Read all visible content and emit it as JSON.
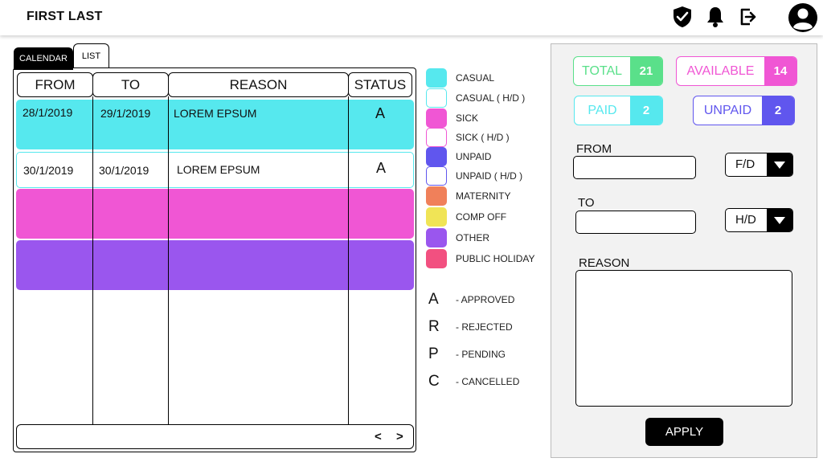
{
  "header": {
    "user_name": "FIRST LAST"
  },
  "icons": [
    "shield-check-icon",
    "bell-icon",
    "logout-icon",
    "avatar-icon"
  ],
  "tabs": [
    {
      "label": "CALENDAR"
    },
    {
      "label": "LIST"
    }
  ],
  "table": {
    "columns": [
      "FROM",
      "TO",
      "REASON",
      "STATUS"
    ],
    "rows": [
      {
        "from": "28/1/2019",
        "to": "29/1/2019",
        "reason": "LOREM EPSUM",
        "status": "A",
        "color": "#56e8ee",
        "outline": false
      },
      {
        "from": "30/1/2019",
        "to": "30/1/2019",
        "reason": "LOREM EPSUM",
        "status": "A",
        "color": "#56e8ee",
        "outline": true
      },
      {
        "from": "",
        "to": "",
        "reason": "",
        "status": "",
        "color": "#f056d4",
        "outline": false
      },
      {
        "from": "",
        "to": "",
        "reason": "",
        "status": "",
        "color": "#9a56ee",
        "outline": false
      }
    ],
    "pager": {
      "prev": "<",
      "next": ">"
    }
  },
  "legend": [
    {
      "label": "CASUAL",
      "color": "#56e8ee",
      "outline": false
    },
    {
      "label": "CASUAL ( H/D )",
      "color": "#56e8ee",
      "outline": true
    },
    {
      "label": "SICK",
      "color": "#f056d4",
      "outline": false
    },
    {
      "label": "SICK ( H/D )",
      "color": "#f056d4",
      "outline": true
    },
    {
      "label": "UNPAID",
      "color": "#6056ee",
      "outline": false
    },
    {
      "label": "UNPAID ( H/D )",
      "color": "#6056ee",
      "outline": true
    },
    {
      "label": "MATERNITY",
      "color": "#f0805a",
      "outline": false
    },
    {
      "label": "COMP OFF",
      "color": "#f0e456",
      "outline": false
    },
    {
      "label": "OTHER",
      "color": "#9a56ee",
      "outline": false
    },
    {
      "label": "PUBLIC HOLIDAY",
      "color": "#f25080",
      "outline": false
    }
  ],
  "status_key": [
    {
      "letter": "A",
      "label": "-  APPROVED"
    },
    {
      "letter": "R",
      "label": "-  REJECTED"
    },
    {
      "letter": "P",
      "label": "-  PENDING"
    },
    {
      "letter": "C",
      "label": "-  CANCELLED"
    }
  ],
  "summary": {
    "total": {
      "label": "TOTAL",
      "count": "21",
      "color": "#5ae08a"
    },
    "available": {
      "label": "AVAILABLE",
      "count": "14",
      "color": "#f056d4"
    },
    "paid": {
      "label": "PAID",
      "count": "2",
      "color": "#56e8ee"
    },
    "unpaid": {
      "label": "UNPAID",
      "count": "2",
      "color": "#6056ee"
    }
  },
  "form": {
    "from_label": "FROM",
    "from_value": "",
    "from_type": "F/D",
    "to_label": "TO",
    "to_value": "",
    "to_type": "H/D",
    "reason_label": "REASON",
    "reason_value": "",
    "apply_label": "APPLY"
  }
}
